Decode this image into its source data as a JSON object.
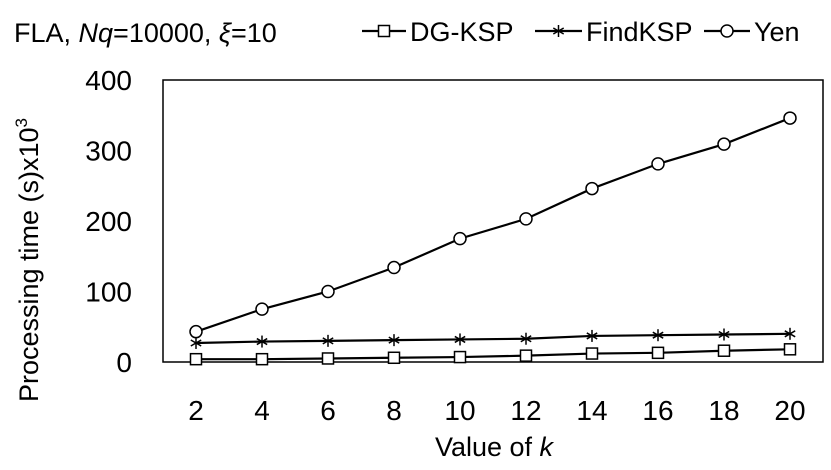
{
  "chart_data": {
    "type": "line",
    "title_parts": {
      "prefix": "FLA, ",
      "nq_label": "Nq",
      "nq_value": "=10000, ",
      "xi_label": "ξ",
      "xi_value": "=10"
    },
    "xlabel_prefix": "Value of ",
    "xlabel_var": "k",
    "ylabel": "Processing time (s)x10",
    "ylabel_exp": "3",
    "x": [
      2,
      4,
      6,
      8,
      10,
      12,
      14,
      16,
      18,
      20
    ],
    "x_tick_labels": [
      "2",
      "4",
      "6",
      "8",
      "10",
      "12",
      "14",
      "16",
      "18",
      "20"
    ],
    "ylim": [
      0,
      400
    ],
    "y_ticks": [
      0,
      100,
      200,
      300,
      400
    ],
    "y_tick_labels": [
      "0",
      "100",
      "200",
      "300",
      "400"
    ],
    "grid": false,
    "legend_position": "top",
    "series": [
      {
        "name": "DG-KSP",
        "marker": "square",
        "values": [
          4,
          4,
          5,
          6,
          7,
          9,
          12,
          13,
          16,
          18
        ]
      },
      {
        "name": "FindKSP",
        "marker": "star",
        "values": [
          27,
          29,
          30,
          31,
          32,
          33,
          37,
          38,
          39,
          40
        ]
      },
      {
        "name": "Yen",
        "marker": "circle",
        "values": [
          43,
          75,
          100,
          134,
          175,
          203,
          246,
          281,
          309,
          346
        ]
      }
    ]
  }
}
